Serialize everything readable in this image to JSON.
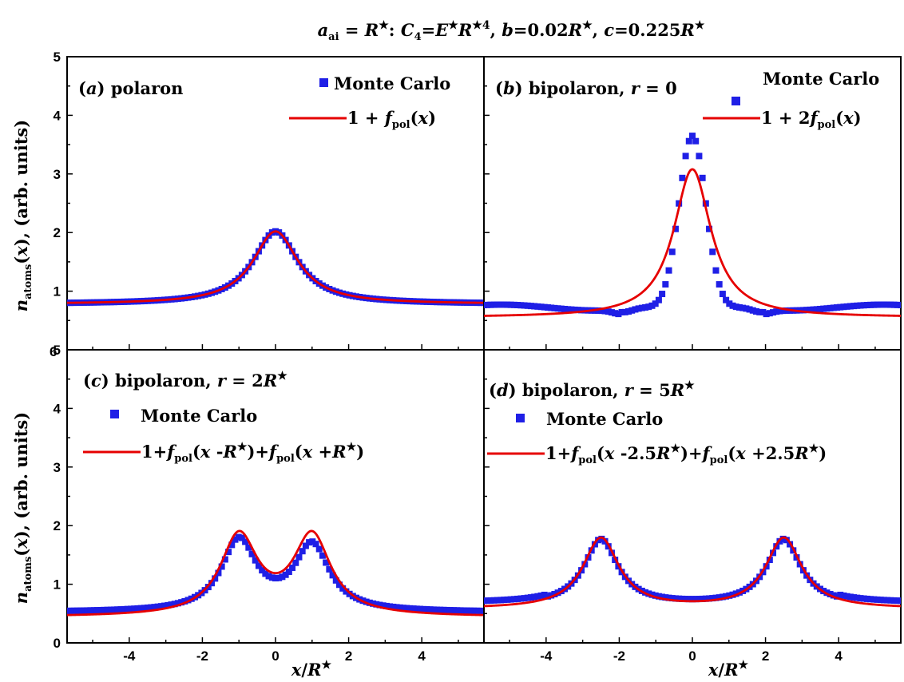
{
  "figure_title": "a_ai = R★:  C₄=E★R★⁴,  b=0.02R★,  c=0.225R★",
  "y_axis_title": "n_atoms(x), (arb. units)",
  "x_axis_title": "x/R★",
  "colors": {
    "monte_carlo": "#1f1fe6",
    "fit": "#e60000",
    "axes": "#000000"
  },
  "chart_data": [
    {
      "type": "scatter",
      "panel": "a",
      "label": "(a) polaron",
      "xlim": [
        -5.7,
        5.7
      ],
      "ylim": [
        0,
        5
      ],
      "yticks": [
        "1",
        "2",
        "3",
        "4",
        "5"
      ],
      "xticks": [],
      "series": [
        {
          "name": "Monte Carlo",
          "kind": "markers",
          "model": "polaron"
        },
        {
          "name": "1 + f_pol(x)",
          "kind": "line",
          "model": "polaron"
        }
      ],
      "peak": {
        "x": 0,
        "y": 2.02
      },
      "background": 0.78
    },
    {
      "type": "scatter",
      "panel": "b",
      "label": "(b) bipolaron, r = 0",
      "xlim": [
        -5.7,
        5.7
      ],
      "ylim": [
        0,
        5
      ],
      "yticks": [],
      "xticks": [],
      "series": [
        {
          "name": "Monte Carlo",
          "kind": "markers",
          "model": "bipolaron_r0_mc"
        },
        {
          "name": "1 + 2f_pol(x)",
          "kind": "line",
          "model": "bipolaron_r0_fit"
        }
      ],
      "mc_peak": {
        "x": 0,
        "y": 3.65
      },
      "fit_peak": {
        "x": 0,
        "y": 3.08
      },
      "mc_background": 0.72,
      "fit_background": 0.55
    },
    {
      "type": "scatter",
      "panel": "c",
      "label": "(c) bipolaron, r = 2R★",
      "xlim": [
        -5.7,
        5.7
      ],
      "ylim": [
        0,
        5
      ],
      "yticks": [
        "0",
        "1",
        "2",
        "3",
        "4",
        "5"
      ],
      "xticks": [
        "-4",
        "-2",
        "0",
        "2",
        "4"
      ],
      "series": [
        {
          "name": "Monte Carlo",
          "kind": "markers",
          "model": "bipolaron_r2_mc"
        },
        {
          "name": "1+f_pol(x - R★)+f_pol(x + R★)",
          "kind": "line",
          "model": "bipolaron_r2_fit"
        }
      ],
      "peaks_x": [
        -1,
        1
      ],
      "peak_y": 1.93,
      "dip_y": 1.43,
      "background": 0.6
    },
    {
      "type": "scatter",
      "panel": "d",
      "label": "(d) bipolaron, r = 5R★",
      "xlim": [
        -5.7,
        5.7
      ],
      "ylim": [
        0,
        5
      ],
      "yticks": [],
      "xticks": [
        "-4",
        "-2",
        "0",
        "2",
        "4"
      ],
      "series": [
        {
          "name": "Monte Carlo",
          "kind": "markers",
          "model": "bipolaron_r5_mc"
        },
        {
          "name": "1+f_pol(x - 2.5R★)+f_pol(x + 2.5R★)",
          "kind": "line",
          "model": "bipolaron_r5_fit"
        }
      ],
      "peaks_x": [
        -2.5,
        2.5
      ],
      "peak_y": 1.8,
      "dip_y": 0.68,
      "background": 0.65
    }
  ],
  "corner_tick_overlap": "6"
}
